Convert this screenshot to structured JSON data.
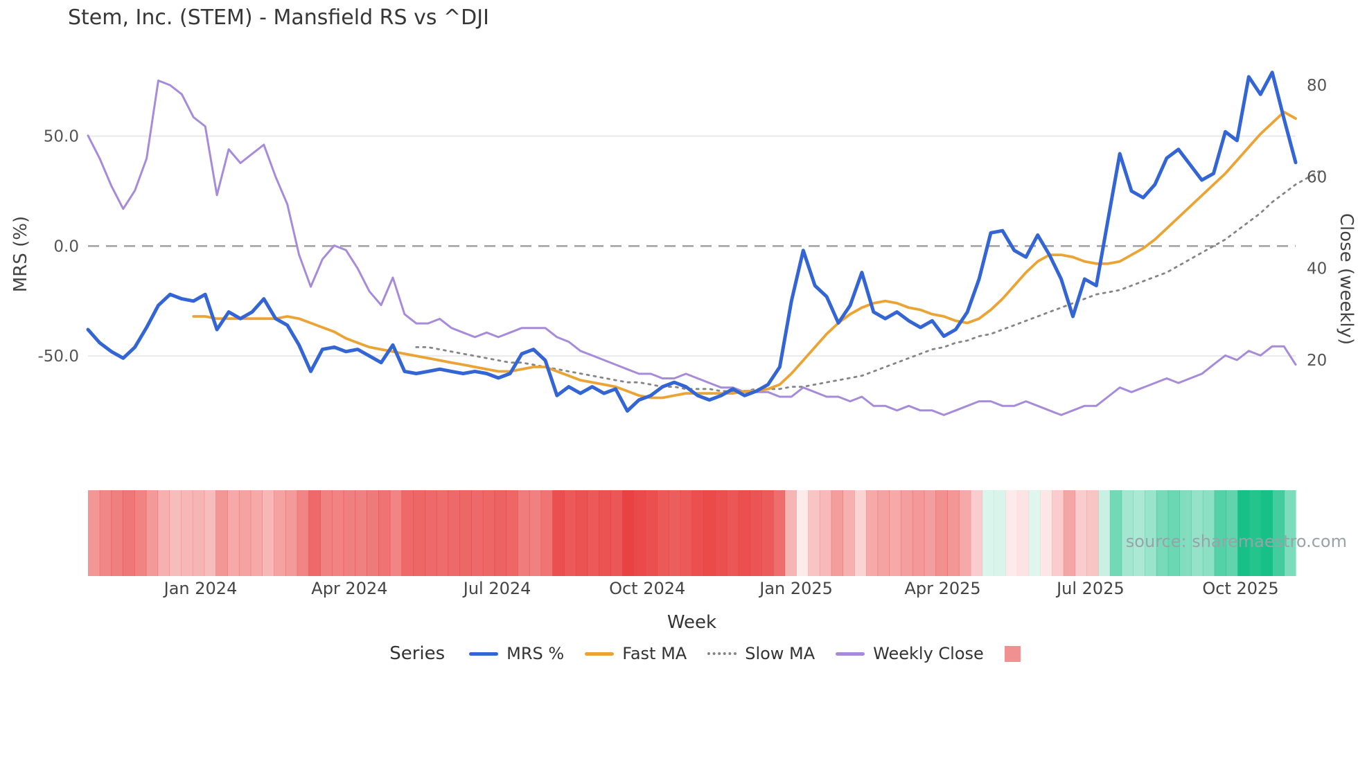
{
  "header": {
    "title": "Stem, Inc. (STEM) - Mansfield RS vs ^DJI"
  },
  "source_note": "source: sharemaestro.com",
  "legend": {
    "title": "Series",
    "items": [
      {
        "label": "MRS %",
        "swatch": "line",
        "color": "#3465d4"
      },
      {
        "label": "Fast MA",
        "swatch": "line",
        "color": "#eba434"
      },
      {
        "label": "Slow MA",
        "swatch": "dotted",
        "color": "#858585"
      },
      {
        "label": "Weekly Close",
        "swatch": "line",
        "color": "#a78bdb"
      },
      {
        "label": "",
        "swatch": "square",
        "color": "#f09090"
      }
    ]
  },
  "chart_data": {
    "type": "line",
    "title": "Stem, Inc. (STEM) - Mansfield RS vs ^DJI",
    "xlabel": "Week",
    "ylabel_left": "MRS (%)",
    "ylabel_right": "Close (weekly)",
    "weeks": 104,
    "x_ticks": [
      {
        "label": "Jan 2024",
        "week_index": 9.6
      },
      {
        "label": "Apr 2024",
        "week_index": 22.3
      },
      {
        "label": "Jul 2024",
        "week_index": 34.9
      },
      {
        "label": "Oct 2024",
        "week_index": 47.7
      },
      {
        "label": "Jan 2025",
        "week_index": 60.4
      },
      {
        "label": "Apr 2025",
        "week_index": 72.9
      },
      {
        "label": "Jul 2025",
        "week_index": 85.5
      },
      {
        "label": "Oct 2025",
        "week_index": 98.3
      }
    ],
    "y_left": {
      "range": [
        -95,
        88
      ],
      "ticks": [
        {
          "label": "50.0",
          "value": 50
        },
        {
          "label": "0.0",
          "value": 0
        },
        {
          "label": "-50.0",
          "value": -50
        }
      ]
    },
    "y_right": {
      "range": [
        -0.7,
        87.1
      ],
      "ticks": [
        {
          "label": "80",
          "value": 80
        },
        {
          "label": "60",
          "value": 60
        },
        {
          "label": "40",
          "value": 40
        },
        {
          "label": "20",
          "value": 20
        }
      ]
    },
    "zero_line": {
      "value": 0,
      "color": "#a0a0a0"
    },
    "series": [
      {
        "name": "MRS %",
        "axis": "left",
        "color": "#3465d4",
        "style": "solid",
        "width": 5,
        "start_index": 0,
        "values": [
          -38,
          -44,
          -48,
          -51,
          -46,
          -37,
          -27,
          -22,
          -24,
          -25,
          -22,
          -38,
          -30,
          -33,
          -30,
          -24,
          -33,
          -36,
          -45,
          -57,
          -47,
          -46,
          -48,
          -47,
          -50,
          -53,
          -45,
          -57,
          -58,
          -57,
          -56,
          -57,
          -58,
          -57,
          -58,
          -60,
          -58,
          -49,
          -47,
          -52,
          -68,
          -64,
          -67,
          -64,
          -67,
          -65,
          -75,
          -70,
          -68,
          -64,
          -62,
          -64,
          -68,
          -70,
          -68,
          -65,
          -68,
          -66,
          -63,
          -55,
          -25,
          -2,
          -18,
          -23,
          -35,
          -27,
          -12,
          -30,
          -33,
          -30,
          -34,
          -37,
          -34,
          -41,
          -38,
          -30,
          -15,
          6,
          7,
          -2,
          -5,
          5,
          -4,
          -15,
          -32,
          -15,
          -18,
          12,
          42,
          25,
          22,
          28,
          40,
          44,
          37,
          30,
          33,
          52,
          48,
          77,
          69,
          79,
          58,
          38
        ]
      },
      {
        "name": "Fast MA",
        "axis": "left",
        "color": "#eba434",
        "style": "solid",
        "width": 3.8,
        "start_index": 9,
        "values": [
          -32,
          -32,
          -33,
          -33,
          -33,
          -33,
          -33,
          -33,
          -32,
          -33,
          -35,
          -37,
          -39,
          -42,
          -44,
          -46,
          -47,
          -48,
          -49,
          -50,
          -51,
          -52,
          -53,
          -54,
          -55,
          -56,
          -57,
          -57,
          -56,
          -55,
          -55,
          -57,
          -59,
          -61,
          -62,
          -63,
          -64,
          -66,
          -68,
          -69,
          -69,
          -68,
          -67,
          -67,
          -67,
          -67,
          -67,
          -66,
          -66,
          -65,
          -63,
          -58,
          -52,
          -46,
          -40,
          -35,
          -31,
          -28,
          -26,
          -25,
          -26,
          -28,
          -29,
          -31,
          -32,
          -34,
          -35,
          -33,
          -29,
          -24,
          -18,
          -12,
          -7,
          -4,
          -4,
          -5,
          -7,
          -8,
          -8,
          -7,
          -4,
          -1,
          3,
          8,
          13,
          18,
          23,
          28,
          33,
          39,
          45,
          51,
          56,
          61,
          58
        ]
      },
      {
        "name": "Slow MA",
        "axis": "left",
        "color": "#858585",
        "style": "dotted",
        "width": 2.8,
        "start_index": 28,
        "values": [
          -46,
          -46,
          -47,
          -48,
          -49,
          -50,
          -51,
          -52,
          -53,
          -53,
          -54,
          -55,
          -56,
          -57,
          -58,
          -59,
          -60,
          -61,
          -62,
          -62,
          -63,
          -64,
          -64,
          -65,
          -65,
          -65,
          -66,
          -66,
          -66,
          -65,
          -65,
          -65,
          -64,
          -64,
          -63,
          -62,
          -61,
          -60,
          -59,
          -57,
          -55,
          -53,
          -51,
          -49,
          -47,
          -46,
          -44,
          -43,
          -41,
          -40,
          -38,
          -36,
          -34,
          -32,
          -30,
          -28,
          -26,
          -24,
          -22,
          -21,
          -20,
          -18,
          -16,
          -14,
          -12,
          -9,
          -6,
          -3,
          0,
          3,
          7,
          11,
          15,
          20,
          24,
          28,
          31,
          34
        ]
      },
      {
        "name": "Weekly Close",
        "axis": "right",
        "color": "#a78bdb",
        "style": "solid",
        "width": 3,
        "start_index": 0,
        "values": [
          69,
          64,
          58,
          53,
          57,
          64,
          81,
          80,
          78,
          73,
          71,
          56,
          66,
          63,
          65,
          67,
          60,
          54,
          43,
          36,
          42,
          45,
          44,
          40,
          35,
          32,
          38,
          30,
          28,
          28,
          29,
          27,
          26,
          25,
          26,
          25,
          26,
          27,
          27,
          27,
          25,
          24,
          22,
          21,
          20,
          19,
          18,
          17,
          17,
          16,
          16,
          17,
          16,
          15,
          14,
          14,
          13,
          13,
          13,
          12,
          12,
          14,
          13,
          12,
          12,
          11,
          12,
          10,
          10,
          9,
          10,
          9,
          9,
          8,
          9,
          10,
          11,
          11,
          10,
          10,
          11,
          10,
          9,
          8,
          9,
          10,
          10,
          12,
          14,
          13,
          14,
          15,
          16,
          15,
          16,
          17,
          19,
          21,
          20,
          22,
          21,
          23,
          23,
          19
        ]
      }
    ],
    "heatmap": {
      "source_series": "MRS %",
      "negative_color": "#e94242",
      "positive_color": "#16c086",
      "alpha_base": 0.08,
      "alpha_scale": 80
    }
  }
}
